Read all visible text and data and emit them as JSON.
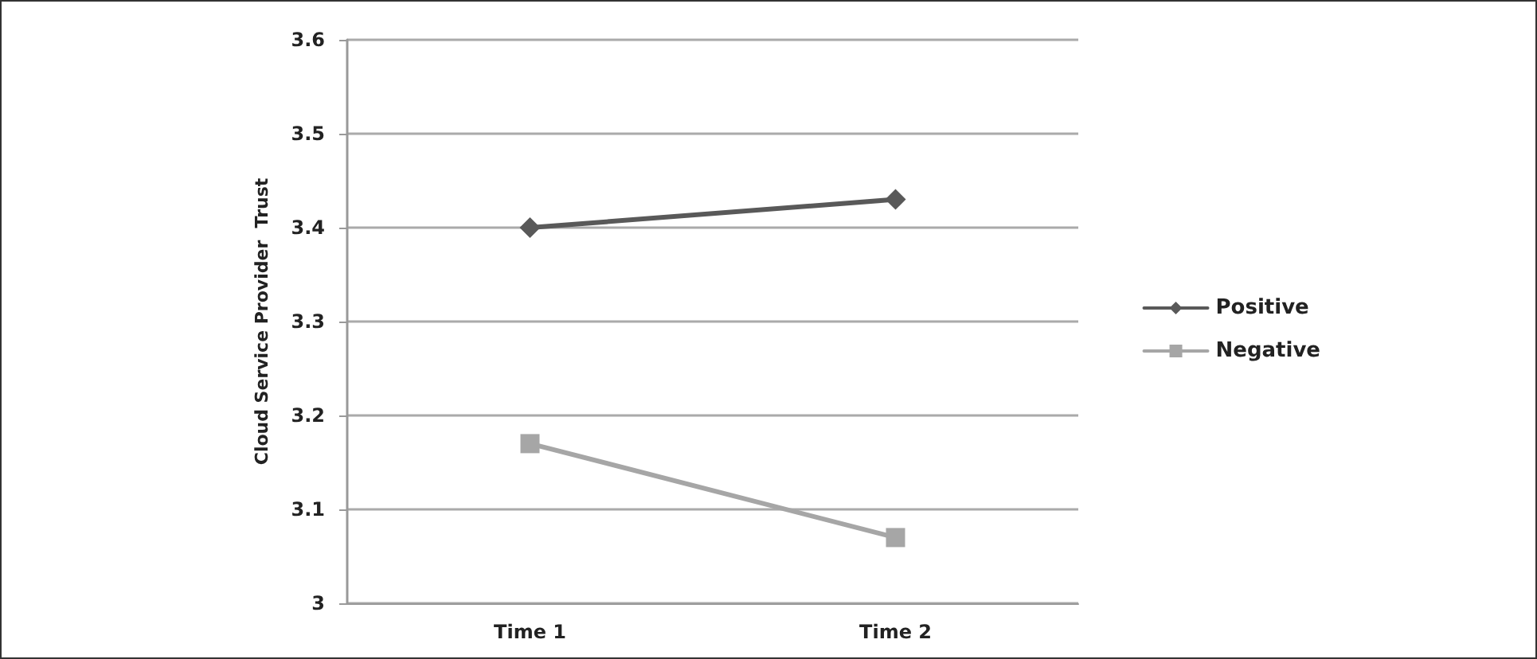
{
  "chart_data": {
    "type": "line",
    "ylabel": "Cloud Service Provider  Trust",
    "categories": [
      "Time 1",
      "Time 2"
    ],
    "series": [
      {
        "name": "Positive",
        "color": "#595959",
        "values": [
          3.4,
          3.43
        ],
        "marker": "diamond"
      },
      {
        "name": "Negative",
        "color": "#a6a6a6",
        "values": [
          3.17,
          3.07
        ],
        "marker": "square"
      }
    ],
    "ylim": [
      3,
      3.6
    ],
    "yticks": [
      3,
      3.1,
      3.2,
      3.3,
      3.4,
      3.5,
      3.6
    ],
    "grid": "y",
    "legend": "right",
    "line_style": "solid"
  }
}
